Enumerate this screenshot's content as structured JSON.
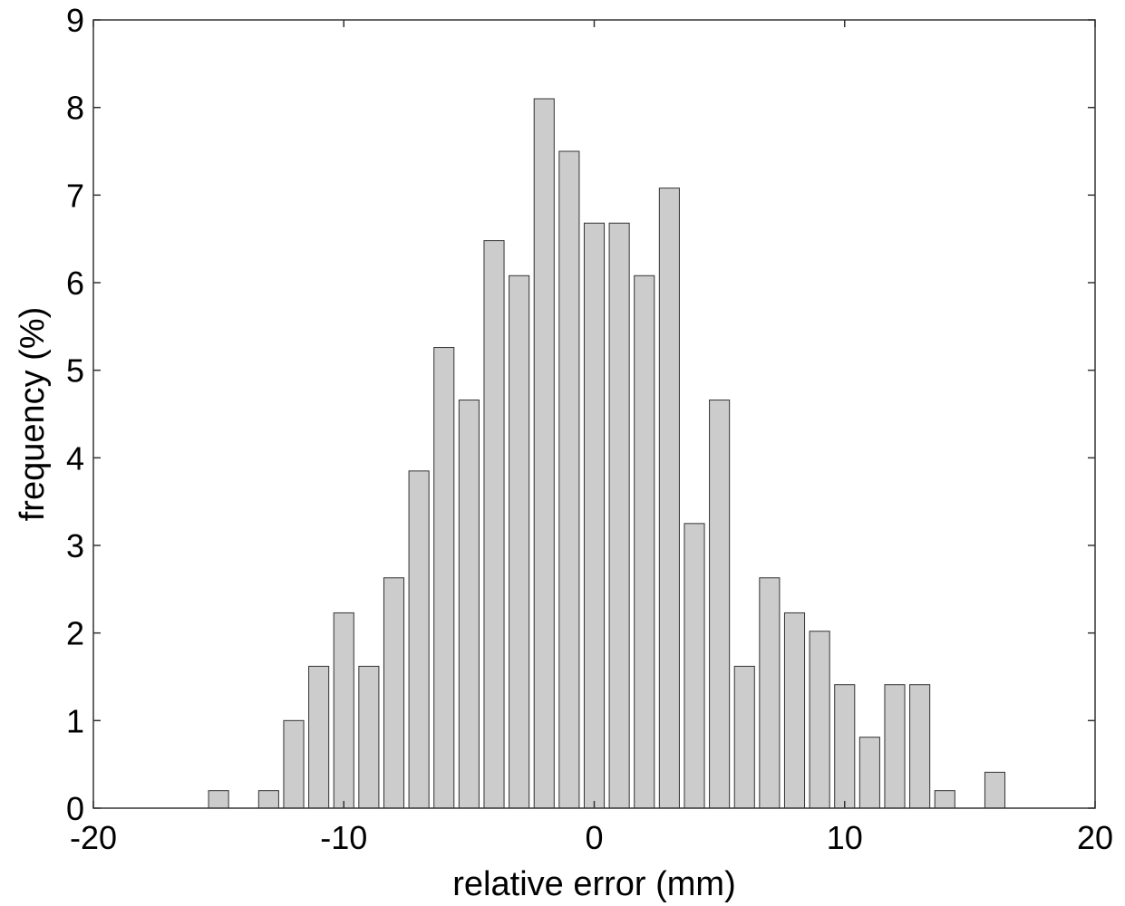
{
  "chart_data": {
    "type": "bar",
    "xlabel": "relative error (mm)",
    "ylabel": "frequency (%)",
    "xlim": [
      -20,
      20
    ],
    "ylim": [
      0,
      9
    ],
    "xticks": [
      "-20",
      "-10",
      "0",
      "10",
      "20"
    ],
    "yticks": [
      "0",
      "1",
      "2",
      "3",
      "4",
      "5",
      "6",
      "7",
      "8",
      "9"
    ],
    "grid": false,
    "bar_color": "#cccccc",
    "bar_edge_color": "#333333",
    "bar_width": 0.8,
    "x": [
      -15,
      -13,
      -12,
      -11,
      -10,
      -9,
      -8,
      -7,
      -6,
      -5,
      -4,
      -3,
      -2,
      -1,
      0,
      1,
      2,
      3,
      4,
      5,
      6,
      7,
      8,
      9,
      10,
      11,
      12,
      13,
      14,
      16
    ],
    "values": [
      0.2,
      0.2,
      1.0,
      1.62,
      2.23,
      1.62,
      2.63,
      3.85,
      5.26,
      4.66,
      6.48,
      6.08,
      8.1,
      7.5,
      6.68,
      6.68,
      6.08,
      7.08,
      3.25,
      4.66,
      1.62,
      2.63,
      2.23,
      2.02,
      1.41,
      0.81,
      1.41,
      1.41,
      0.2,
      0.41
    ]
  }
}
